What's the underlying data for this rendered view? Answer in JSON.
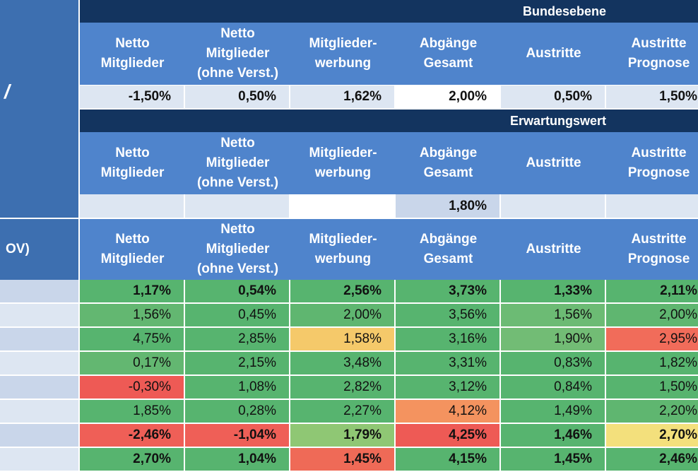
{
  "left_column": {
    "slash_text": "/",
    "ov_label": "OV)"
  },
  "column_headers": [
    [
      "Netto",
      "Mitglieder"
    ],
    [
      "Netto",
      "Mitglieder",
      "(ohne Verst.)"
    ],
    [
      "Mitglieder-",
      "werbung"
    ],
    [
      "Abgänge",
      "Gesamt"
    ],
    [
      "Austritte"
    ],
    [
      "Austritte",
      "Prognose"
    ]
  ],
  "section_bundesebene": {
    "title": "Bundesebene",
    "values": [
      "-1,50%",
      "0,50%",
      "1,62%",
      "2,00%",
      "0,50%",
      "1,50%"
    ]
  },
  "section_erwartungswert": {
    "title": "Erwartungswert",
    "values": [
      "",
      "",
      "",
      "1,80%",
      "",
      ""
    ]
  },
  "data_rows": [
    [
      "1,17%",
      "0,54%",
      "2,56%",
      "3,73%",
      "1,33%",
      "2,11%"
    ],
    [
      "1,56%",
      "0,45%",
      "2,00%",
      "3,56%",
      "1,56%",
      "2,00%"
    ],
    [
      "4,75%",
      "2,85%",
      "1,58%",
      "3,16%",
      "1,90%",
      "2,95%"
    ],
    [
      "0,17%",
      "2,15%",
      "3,48%",
      "3,31%",
      "0,83%",
      "1,82%"
    ],
    [
      "-0,30%",
      "1,08%",
      "2,82%",
      "3,12%",
      "0,84%",
      "1,50%"
    ],
    [
      "1,85%",
      "0,28%",
      "2,27%",
      "4,12%",
      "1,49%",
      "2,20%"
    ],
    [
      "-2,46%",
      "-1,04%",
      "1,79%",
      "4,25%",
      "1,46%",
      "2,70%"
    ],
    [
      "2,70%",
      "1,04%",
      "1,45%",
      "4,15%",
      "1,45%",
      "2,46%"
    ]
  ],
  "cell_colors": [
    [
      "#57b46f",
      "#57b46f",
      "#57b46f",
      "#57b46f",
      "#57b46f",
      "#57b46f"
    ],
    [
      "#63b771",
      "#57b46f",
      "#5fb670",
      "#57b46f",
      "#6cbb74",
      "#5fb670"
    ],
    [
      "#57b46f",
      "#57b46f",
      "#f5c96a",
      "#57b46f",
      "#72bc75",
      "#f16c5a"
    ],
    [
      "#63b771",
      "#57b46f",
      "#57b46f",
      "#57b46f",
      "#57b46f",
      "#57b46f"
    ],
    [
      "#ee5a55",
      "#57b46f",
      "#57b46f",
      "#57b46f",
      "#57b46f",
      "#57b46f"
    ],
    [
      "#57b46f",
      "#57b46f",
      "#57b46f",
      "#f4935f",
      "#57b46f",
      "#5fb670"
    ],
    [
      "#ef5f57",
      "#ef5f57",
      "#8fc774",
      "#ee5a55",
      "#57b46f",
      "#f3e07c"
    ],
    [
      "#57b46f",
      "#57b46f",
      "#ef6a57",
      "#57b46f",
      "#57b46f",
      "#57b46f"
    ]
  ],
  "bold_rows": [
    0,
    6,
    7
  ],
  "bundesebene_cell_colors": [
    "#dde6f2",
    "#dde6f2",
    "#dde6f2",
    "#ffffff",
    "#dde6f2",
    "#dde6f2"
  ],
  "erwartungswert_cell_colors": [
    "#dde6f2",
    "#dde6f2",
    "#ffffff",
    "#c9d6ea",
    "#dde6f2",
    "#dde6f2"
  ]
}
